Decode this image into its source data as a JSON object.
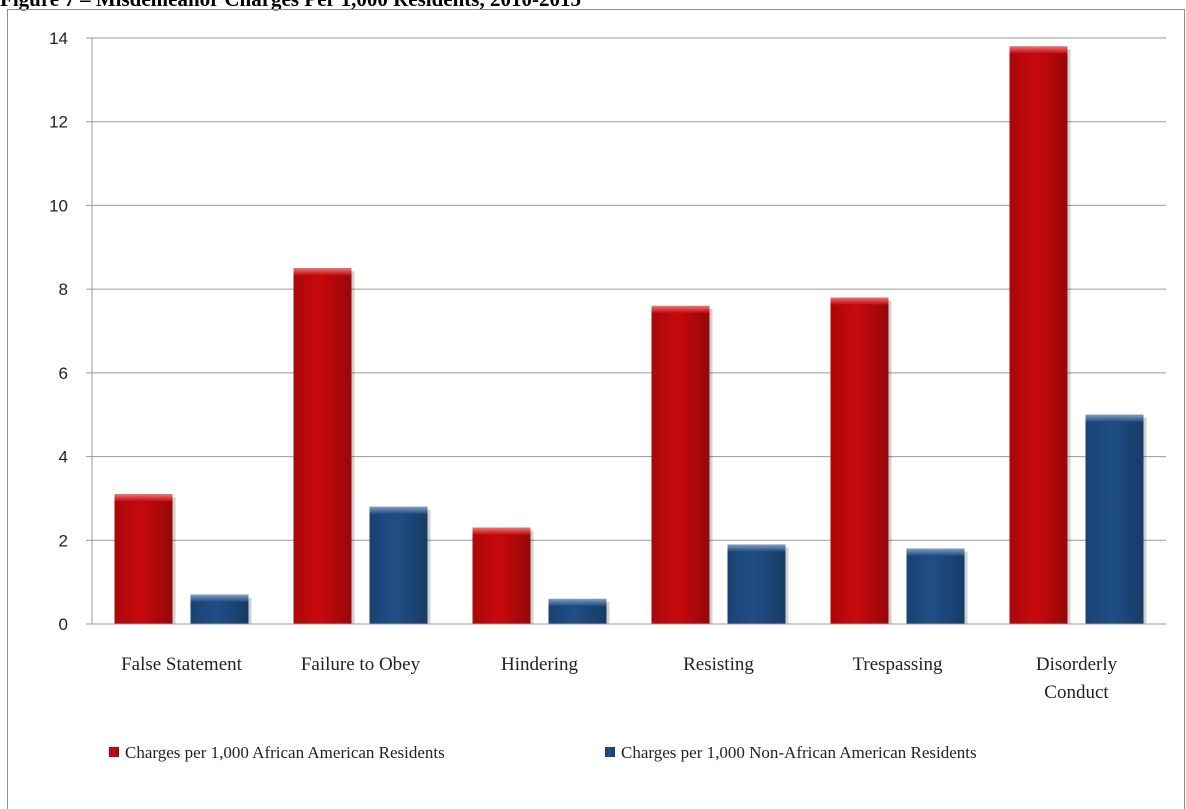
{
  "figure": {
    "title": "Figure 7 – Misdemeanor Charges Per 1,000 Residents, 2010-2015"
  },
  "colors": {
    "series_1": "#c8090c",
    "series_2": "#1f4e86"
  },
  "chart_data": {
    "type": "bar",
    "title": "Figure 7 – Misdemeanor Charges Per 1,000 Residents, 2010-2015",
    "categories": [
      [
        "False Statement"
      ],
      [
        "Failure to Obey"
      ],
      [
        "Hindering"
      ],
      [
        "Resisting"
      ],
      [
        "Trespassing"
      ],
      [
        "Disorderly",
        "Conduct"
      ]
    ],
    "series": [
      {
        "name": "Charges per 1,000 African American Residents",
        "values": [
          3.1,
          8.5,
          2.3,
          7.6,
          7.8,
          13.8
        ]
      },
      {
        "name": "Charges per 1,000 Non-African American Residents",
        "values": [
          0.7,
          2.8,
          0.6,
          1.9,
          1.8,
          5.0
        ]
      }
    ],
    "xlabel": "",
    "ylabel": "",
    "ylim": [
      0,
      14
    ],
    "yticks": [
      0,
      2,
      4,
      6,
      8,
      10,
      12,
      14
    ],
    "grid": true,
    "legend_position": "bottom"
  }
}
